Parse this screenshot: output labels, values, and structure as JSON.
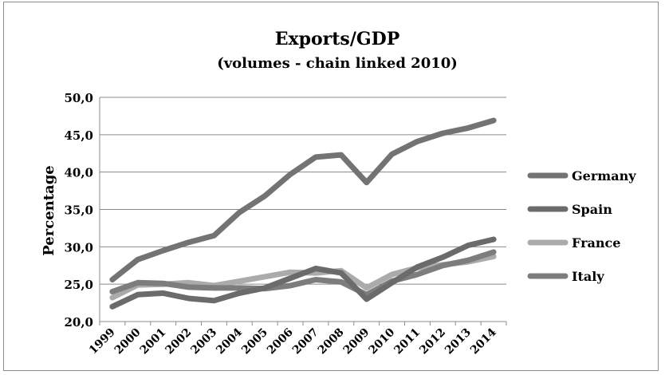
{
  "chart_data": {
    "type": "line",
    "title": "Exports/GDP",
    "subtitle": "(volumes - chain linked 2010)",
    "xlabel": "",
    "ylabel": "Percentage",
    "ylim": [
      20,
      50
    ],
    "yticks": [
      "20,0",
      "25,0",
      "30,0",
      "35,0",
      "40,0",
      "45,0",
      "50,0"
    ],
    "categories": [
      "1999",
      "2000",
      "2001",
      "2002",
      "2003",
      "2004",
      "2005",
      "2006",
      "2007",
      "2008",
      "2009",
      "2010",
      "2011",
      "2012",
      "2013",
      "2014"
    ],
    "grid": true,
    "legend": "right",
    "series": [
      {
        "name": "Germany",
        "color": "#737373",
        "values": [
          25.6,
          28.3,
          29.5,
          30.6,
          31.5,
          34.6,
          36.8,
          39.7,
          42.0,
          42.3,
          38.6,
          42.4,
          44.1,
          45.2,
          45.9,
          46.9
        ]
      },
      {
        "name": "Spain",
        "color": "#6b6b6b",
        "values": [
          22.0,
          23.6,
          23.8,
          23.1,
          22.8,
          23.8,
          24.5,
          25.8,
          27.1,
          26.5,
          23.0,
          25.2,
          27.3,
          28.6,
          30.2,
          31.0
        ]
      },
      {
        "name": "France",
        "color": "#ababab",
        "values": [
          23.2,
          24.9,
          25.0,
          25.2,
          24.8,
          25.4,
          26.0,
          26.6,
          26.5,
          26.8,
          24.5,
          26.3,
          27.2,
          27.6,
          28.0,
          28.7
        ]
      },
      {
        "name": "Italy",
        "color": "#7d7d7d",
        "values": [
          24.0,
          25.2,
          25.1,
          24.6,
          24.5,
          24.5,
          24.4,
          24.8,
          25.6,
          25.3,
          23.6,
          25.4,
          26.3,
          27.5,
          28.2,
          29.3
        ]
      }
    ]
  }
}
